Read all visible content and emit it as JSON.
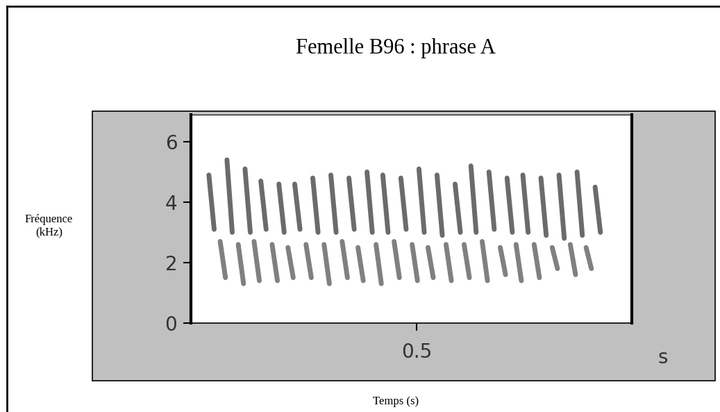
{
  "chart_data": {
    "type": "spectrogram",
    "title": "Femelle B96 : phrase A",
    "x_label": "Temps (s)",
    "y_label": "Fréquence\n(kHz)",
    "annotations": [
      "s"
    ],
    "xlim": [
      0,
      0.977
    ],
    "xticks": [
      0.5
    ],
    "ylim": [
      0,
      6.9
    ],
    "yticks": [
      0,
      2,
      4,
      6
    ],
    "grid": false,
    "series": [
      {
        "color": "#3a3a3a",
        "x": [
          0.04,
          0.08,
          0.12,
          0.155,
          0.195,
          0.23,
          0.27,
          0.31,
          0.35,
          0.39,
          0.425,
          0.465,
          0.505,
          0.545,
          0.585,
          0.62,
          0.66,
          0.7,
          0.735,
          0.775,
          0.815,
          0.855,
          0.895
        ],
        "high": [
          4.9,
          5.4,
          5.1,
          4.7,
          4.6,
          4.6,
          4.8,
          4.9,
          4.8,
          5.0,
          4.9,
          4.8,
          5.1,
          4.9,
          4.6,
          5.2,
          5.0,
          4.8,
          4.9,
          4.8,
          4.9,
          5.0,
          4.5
        ],
        "low": [
          3.1,
          3.0,
          3.0,
          3.1,
          3.0,
          3.1,
          3.0,
          3.0,
          3.1,
          3.0,
          3.0,
          3.1,
          3.0,
          2.9,
          3.0,
          3.0,
          3.1,
          3.0,
          3.0,
          2.9,
          2.8,
          2.9,
          3.0
        ]
      },
      {
        "color": "#555555",
        "x": [
          0.065,
          0.105,
          0.14,
          0.18,
          0.215,
          0.255,
          0.295,
          0.335,
          0.37,
          0.41,
          0.45,
          0.49,
          0.525,
          0.565,
          0.605,
          0.645,
          0.685,
          0.72,
          0.76,
          0.8,
          0.84,
          0.875
        ],
        "high": [
          2.7,
          2.6,
          2.7,
          2.6,
          2.5,
          2.6,
          2.6,
          2.7,
          2.5,
          2.6,
          2.7,
          2.6,
          2.5,
          2.6,
          2.6,
          2.7,
          2.5,
          2.6,
          2.6,
          2.5,
          2.6,
          2.5
        ],
        "low": [
          1.5,
          1.3,
          1.4,
          1.4,
          1.5,
          1.5,
          1.3,
          1.5,
          1.4,
          1.3,
          1.5,
          1.4,
          1.5,
          1.4,
          1.5,
          1.4,
          1.6,
          1.4,
          1.5,
          1.8,
          1.6,
          1.8
        ]
      }
    ]
  }
}
